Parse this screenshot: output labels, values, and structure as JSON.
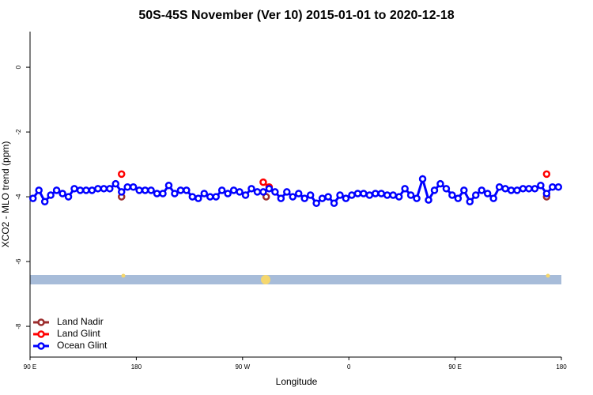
{
  "chart_data": {
    "type": "line",
    "title": "50S-45S November (Ver 10)   2015-01-01 to 2020-12-18",
    "x_label": "Longitude",
    "y_label": "XCO2 - MLO trend (ppm)",
    "xlim": [
      90,
      540
    ],
    "ylim": [
      -8.95,
      1.1
    ],
    "xticks": [
      {
        "value": 90,
        "label": "90 E"
      },
      {
        "value": 180,
        "label": "180"
      },
      {
        "value": 270,
        "label": "90 W"
      },
      {
        "value": 360,
        "label": "0"
      },
      {
        "value": 450,
        "label": "90 E"
      },
      {
        "value": 540,
        "label": "180"
      }
    ],
    "yticks": [
      0,
      -2,
      -4,
      -6,
      -8
    ],
    "legend": "bottom-left",
    "series": [
      {
        "name": "Land Nadir",
        "color": "#9b2d2d",
        "x": [
          167.5,
          290,
          527.5
        ],
        "values": [
          -4.0,
          -4.0,
          -4.0
        ]
      },
      {
        "name": "Land Glint",
        "color": "#ff0000",
        "x": [
          167.5,
          287.5,
          292.5,
          527.5
        ],
        "values": [
          -3.3,
          -3.55,
          -3.7,
          -3.3
        ]
      },
      {
        "name": "Ocean Glint",
        "color": "#0000ff",
        "x": [
          92.5,
          97.5,
          102.5,
          107.5,
          112.5,
          117.5,
          122.5,
          127.5,
          132.5,
          137.5,
          142.5,
          147.5,
          152.5,
          157.5,
          162.5,
          167.5,
          172.5,
          177.5,
          182.5,
          187.5,
          192.5,
          197.5,
          202.5,
          207.5,
          212.5,
          217.5,
          222.5,
          227.5,
          232.5,
          237.5,
          242.5,
          247.5,
          252.5,
          257.5,
          262.5,
          267.5,
          272.5,
          277.5,
          282.5,
          287.5,
          292.5,
          297.5,
          302.5,
          307.5,
          312.5,
          317.5,
          322.5,
          327.5,
          332.5,
          337.5,
          342.5,
          347.5,
          352.5,
          357.5,
          362.5,
          367.5,
          372.5,
          377.5,
          382.5,
          387.5,
          392.5,
          397.5,
          402.5,
          407.5,
          412.5,
          417.5,
          422.5,
          427.5,
          432.5,
          437.5,
          442.5,
          447.5,
          452.5,
          457.5,
          462.5,
          467.5,
          472.5,
          477.5,
          482.5,
          487.5,
          492.5,
          497.5,
          502.5,
          507.5,
          512.5,
          517.5,
          522.5,
          527.5,
          532.5,
          537.5
        ],
        "values": [
          -4.05,
          -3.8,
          -4.15,
          -3.95,
          -3.8,
          -3.9,
          -4.0,
          -3.75,
          -3.8,
          -3.8,
          -3.8,
          -3.75,
          -3.75,
          -3.75,
          -3.6,
          -3.85,
          -3.7,
          -3.7,
          -3.8,
          -3.8,
          -3.8,
          -3.9,
          -3.9,
          -3.65,
          -3.9,
          -3.8,
          -3.8,
          -4.0,
          -4.05,
          -3.9,
          -4.0,
          -4.0,
          -3.8,
          -3.9,
          -3.8,
          -3.85,
          -3.95,
          -3.75,
          -3.85,
          -3.85,
          -3.75,
          -3.85,
          -4.05,
          -3.85,
          -4.0,
          -3.9,
          -4.05,
          -3.95,
          -4.2,
          -4.05,
          -4.0,
          -4.2,
          -3.95,
          -4.05,
          -3.95,
          -3.9,
          -3.9,
          -3.95,
          -3.9,
          -3.9,
          -3.95,
          -3.95,
          -4.0,
          -3.75,
          -3.95,
          -4.05,
          -3.45,
          -4.1,
          -3.8,
          -3.6,
          -3.75,
          -3.95,
          -4.05,
          -3.8,
          -4.15,
          -3.95,
          -3.8,
          -3.9,
          -4.05,
          -3.7,
          -3.75,
          -3.8,
          -3.8,
          -3.75,
          -3.75,
          -3.75,
          -3.65,
          -3.9,
          -3.7,
          -3.7
        ]
      }
    ]
  }
}
